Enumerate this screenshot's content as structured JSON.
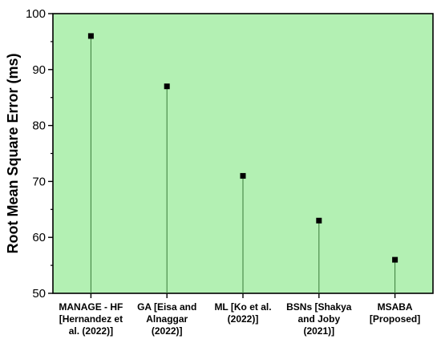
{
  "chart_data": {
    "type": "scatter",
    "style": "stem",
    "ylabel": "Root Mean Square Error (ms)",
    "xlabel": "",
    "ylim": [
      50,
      100
    ],
    "yticks": [
      50,
      60,
      70,
      80,
      90,
      100
    ],
    "categories": [
      [
        "MANAGE - HF",
        "[Hernandez et",
        "al. (2022)]"
      ],
      [
        "GA [Eisa and",
        "Alnaggar",
        "(2022)]"
      ],
      [
        "ML [Ko et al.",
        "(2022)]"
      ],
      [
        "BSNs [Shakya",
        "and Joby",
        "(2021)]"
      ],
      [
        "MSABA",
        "[Proposed]"
      ]
    ],
    "values": [
      96,
      87,
      71,
      63,
      56
    ],
    "grid": false,
    "legend": "none",
    "colors": {
      "plot_background": "#b3f0b3",
      "marker": "#000000",
      "stem": "#3a7a3a"
    }
  }
}
